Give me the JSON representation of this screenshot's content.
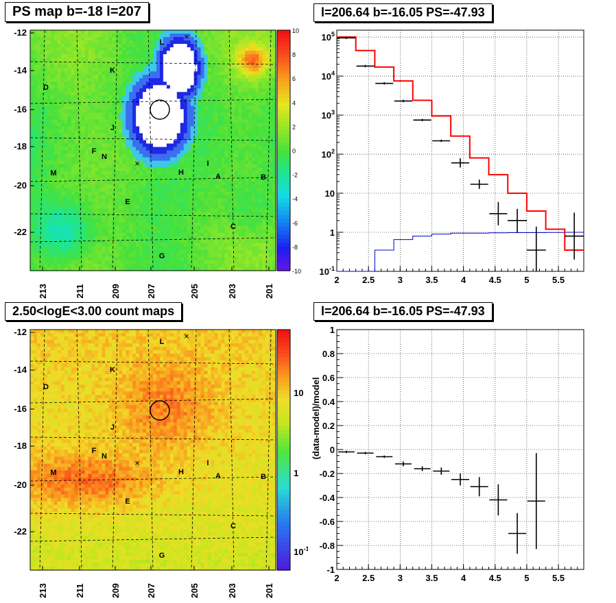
{
  "panels": {
    "tl_title": "PS map b=-18 l=207",
    "tr_title": "l=206.64 b=-16.05 PS=-47.93",
    "bl_title": "2.50<logE<3.00 count maps",
    "br_title": "l=206.64 b=-16.05 PS=-47.93"
  },
  "chart_data": [
    {
      "type": "heatmap",
      "title": "PS map b=-18 l=207",
      "xlabel": "",
      "ylabel": "",
      "x_ticks": [
        "213",
        "211",
        "209",
        "207",
        "205",
        "203",
        "201"
      ],
      "y_ticks": [
        "-12",
        "-14",
        "-16",
        "-18",
        "-20",
        "-22"
      ],
      "xlim": [
        213.5,
        200.5
      ],
      "ylim": [
        -23.8,
        -12
      ],
      "colorbar": {
        "min": -10,
        "max": 10,
        "ticks": [
          "10",
          "8",
          "6",
          "4",
          "2",
          "0",
          "-2",
          "-4",
          "-6",
          "-8",
          "-10"
        ]
      },
      "source_labels": [
        "L",
        "K",
        "D",
        "J",
        "F",
        "N",
        "M",
        "H",
        "I",
        "A",
        "B",
        "E",
        "C",
        "G"
      ],
      "markers": [
        "×",
        "×",
        "○"
      ],
      "colors": {
        "background": "#44e040",
        "saturated": "#ffffff",
        "contour": "#1a24e0"
      }
    },
    {
      "type": "line",
      "title": "l=206.64 b=-16.05 PS=-47.93",
      "xlabel": "",
      "ylabel": "",
      "yscale": "log",
      "xlim": [
        2,
        5.9
      ],
      "ylim": [
        0.1,
        150000
      ],
      "x_ticks": [
        "2",
        "2.5",
        "3",
        "3.5",
        "4",
        "4.5",
        "5",
        "5.5"
      ],
      "y_ticks": [
        "10^-1",
        "1",
        "10",
        "10^2",
        "10^3",
        "10^4",
        "10^5"
      ],
      "grid": true,
      "series": [
        {
          "kind": "data",
          "color": "#000000",
          "x": [
            2.15,
            2.45,
            2.75,
            3.05,
            3.35,
            3.65,
            3.95,
            4.25,
            4.55,
            4.85,
            5.15,
            5.75
          ],
          "y": [
            95000,
            18000,
            6500,
            2300,
            750,
            220,
            60,
            17,
            3,
            2,
            0.35,
            0.8
          ]
        },
        {
          "kind": "model-step",
          "color": "#ff0000",
          "edges": [
            2.0,
            2.3,
            2.6,
            2.9,
            3.2,
            3.5,
            3.8,
            4.1,
            4.4,
            4.7,
            5.0,
            5.3,
            5.6,
            5.9
          ],
          "values": [
            100000,
            45000,
            17000,
            7500,
            2400,
            950,
            290,
            80,
            30,
            10,
            3.5,
            1.2,
            0.35
          ]
        },
        {
          "kind": "background-step",
          "color": "#0000cc",
          "edges": [
            2.0,
            2.3,
            2.6,
            2.9,
            3.2,
            3.5,
            3.8,
            4.1,
            4.4,
            4.7,
            5.0,
            5.3,
            5.6,
            5.9
          ],
          "values": [
            0.09,
            0.1,
            0.35,
            0.65,
            0.8,
            0.9,
            0.95,
            0.95,
            0.97,
            0.98,
            0.98,
            0.99,
            1.0
          ]
        }
      ]
    },
    {
      "type": "heatmap",
      "title": "2.50<logE<3.00 count maps",
      "xlabel": "",
      "ylabel": "",
      "x_ticks": [
        "213",
        "211",
        "209",
        "207",
        "205",
        "203",
        "201"
      ],
      "y_ticks": [
        "-12",
        "-14",
        "-16",
        "-18",
        "-20",
        "-22"
      ],
      "colorbar": {
        "scale": "log",
        "ticks": [
          "10",
          "1",
          "10^-1"
        ]
      },
      "source_labels": [
        "L",
        "K",
        "D",
        "J",
        "F",
        "N",
        "M",
        "H",
        "I",
        "A",
        "B",
        "E",
        "C",
        "G"
      ]
    },
    {
      "type": "scatter",
      "title": "l=206.64 b=-16.05 PS=-47.93",
      "xlabel": "",
      "ylabel": "(data-model)/model",
      "xlim": [
        2,
        5.9
      ],
      "ylim": [
        -1,
        1
      ],
      "x_ticks": [
        "2",
        "2.5",
        "3",
        "3.5",
        "4",
        "4.5",
        "5",
        "5.5"
      ],
      "y_ticks": [
        "1",
        "0.8",
        "0.6",
        "0.4",
        "0.2",
        "0",
        "-0.2",
        "-0.4",
        "-0.6",
        "-0.8",
        "-1"
      ],
      "grid": true,
      "x": [
        2.15,
        2.45,
        2.75,
        3.05,
        3.35,
        3.65,
        3.95,
        4.25,
        4.55,
        4.85,
        5.15
      ],
      "y": [
        -0.02,
        -0.03,
        -0.06,
        -0.12,
        -0.16,
        -0.18,
        -0.25,
        -0.31,
        -0.42,
        -0.7,
        -0.43
      ],
      "yerr": [
        0.01,
        0.01,
        0.01,
        0.02,
        0.02,
        0.03,
        0.05,
        0.08,
        0.13,
        0.17,
        0.4
      ]
    }
  ]
}
